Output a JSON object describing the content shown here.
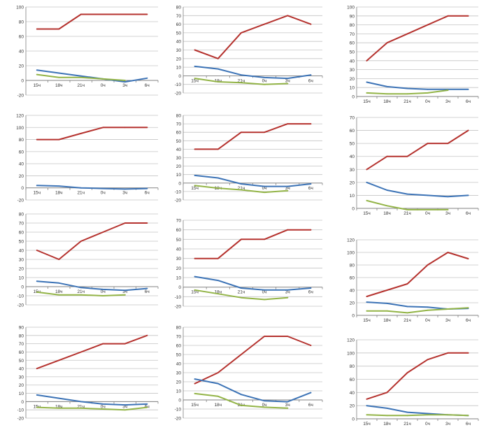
{
  "colors": {
    "red": "#B5322E",
    "blue": "#3C73B6",
    "green": "#93B447",
    "grid": "#C4C4C4",
    "axis": "#808080",
    "text": "#333333"
  },
  "chart_data": [
    {
      "type": "line",
      "title": "",
      "categories": [
        "15ч",
        "18ч",
        "21ч",
        "0ч",
        "3ч",
        "6ч"
      ],
      "ylim": [
        -20,
        100
      ],
      "yticks": [
        -20,
        0,
        20,
        40,
        60,
        80,
        100
      ],
      "grid": true,
      "series": [
        {
          "name": "red",
          "values": [
            70,
            70,
            90,
            90,
            90,
            90
          ]
        },
        {
          "name": "blue",
          "values": [
            14,
            10,
            6,
            2,
            -2,
            3
          ]
        },
        {
          "name": "green",
          "values": [
            8,
            4,
            4,
            2,
            0,
            null
          ]
        }
      ]
    },
    {
      "type": "line",
      "title": "",
      "categories": [
        "15ч",
        "18ч",
        "21ч",
        "0ч",
        "3ч",
        "6ч"
      ],
      "ylim": [
        -20,
        80
      ],
      "yticks": [
        -20,
        -10,
        0,
        10,
        20,
        30,
        40,
        50,
        60,
        70,
        80
      ],
      "grid": true,
      "series": [
        {
          "name": "red",
          "values": [
            30,
            20,
            50,
            60,
            70,
            60
          ]
        },
        {
          "name": "blue",
          "values": [
            11,
            8,
            1,
            -2,
            -3,
            1
          ]
        },
        {
          "name": "green",
          "values": [
            -3,
            -7,
            -8,
            -10,
            -9,
            null
          ]
        }
      ]
    },
    {
      "type": "line",
      "title": "",
      "categories": [
        "15ч",
        "18ч",
        "21ч",
        "0ч",
        "3ч",
        "6ч"
      ],
      "ylim": [
        0,
        100
      ],
      "yticks": [
        0,
        10,
        20,
        30,
        40,
        50,
        60,
        70,
        80,
        90,
        100
      ],
      "grid": true,
      "series": [
        {
          "name": "red",
          "values": [
            40,
            60,
            70,
            80,
            90,
            90
          ]
        },
        {
          "name": "blue",
          "values": [
            16,
            11,
            9,
            8,
            8,
            8
          ]
        },
        {
          "name": "green",
          "values": [
            4,
            3,
            3,
            4,
            7,
            null
          ]
        }
      ]
    },
    {
      "type": "line",
      "title": "",
      "categories": [
        "15ч",
        "18ч",
        "21ч",
        "0ч",
        "3ч",
        "6ч"
      ],
      "ylim": [
        -20,
        120
      ],
      "yticks": [
        -20,
        0,
        20,
        40,
        60,
        80,
        100,
        120
      ],
      "grid": true,
      "series": [
        {
          "name": "red",
          "values": [
            80,
            80,
            90,
            100,
            100,
            100
          ]
        },
        {
          "name": "blue",
          "values": [
            4,
            3,
            0,
            -1,
            -2,
            -1
          ]
        },
        {
          "name": "green",
          "values": [
            null,
            null,
            null,
            null,
            null,
            null
          ]
        }
      ]
    },
    {
      "type": "line",
      "title": "",
      "categories": [
        "15ч",
        "18ч",
        "21ч",
        "0ч",
        "3ч",
        "6ч"
      ],
      "ylim": [
        -20,
        80
      ],
      "yticks": [
        -20,
        -10,
        0,
        10,
        20,
        30,
        40,
        50,
        60,
        70,
        80
      ],
      "grid": true,
      "series": [
        {
          "name": "red",
          "values": [
            40,
            40,
            60,
            60,
            70,
            70
          ]
        },
        {
          "name": "blue",
          "values": [
            9,
            6,
            -1,
            -4,
            -4,
            -1
          ]
        },
        {
          "name": "green",
          "values": [
            -3,
            -6,
            -8,
            -11,
            -9,
            null
          ]
        }
      ]
    },
    {
      "type": "line",
      "title": "",
      "categories": [
        "15ч",
        "18ч",
        "21ч",
        "0ч",
        "3ч",
        "6ч"
      ],
      "ylim": [
        0,
        70
      ],
      "yticks": [
        0,
        10,
        20,
        30,
        40,
        50,
        60,
        70
      ],
      "grid": true,
      "series": [
        {
          "name": "red",
          "values": [
            30,
            40,
            40,
            50,
            50,
            60
          ]
        },
        {
          "name": "blue",
          "values": [
            20,
            14,
            11,
            10,
            9,
            10
          ]
        },
        {
          "name": "green",
          "values": [
            6,
            2,
            -1,
            -1,
            -1,
            null
          ]
        }
      ]
    },
    {
      "type": "line",
      "title": "",
      "categories": [
        "15ч",
        "18ч",
        "21ч",
        "0ч",
        "3ч",
        "6ч"
      ],
      "ylim": [
        -20,
        80
      ],
      "yticks": [
        -20,
        -10,
        0,
        10,
        20,
        30,
        40,
        50,
        60,
        70,
        80
      ],
      "grid": true,
      "series": [
        {
          "name": "red",
          "values": [
            40,
            30,
            50,
            60,
            70,
            70
          ]
        },
        {
          "name": "blue",
          "values": [
            6,
            4,
            -1,
            -3,
            -4,
            -2
          ]
        },
        {
          "name": "green",
          "values": [
            -6,
            -9,
            -9,
            -10,
            -9,
            null
          ]
        }
      ]
    },
    {
      "type": "line",
      "title": "",
      "categories": [
        "15ч",
        "18ч",
        "21ч",
        "0ч",
        "3ч",
        "6ч"
      ],
      "ylim": [
        -20,
        70
      ],
      "yticks": [
        -20,
        -10,
        0,
        10,
        20,
        30,
        40,
        50,
        60,
        70
      ],
      "grid": true,
      "series": [
        {
          "name": "red",
          "values": [
            30,
            30,
            50,
            50,
            60,
            60
          ]
        },
        {
          "name": "blue",
          "values": [
            11,
            7,
            -1,
            -3,
            -3,
            -1
          ]
        },
        {
          "name": "green",
          "values": [
            -3,
            -7,
            -11,
            -13,
            -11,
            null
          ]
        }
      ]
    },
    {
      "type": "line",
      "title": "",
      "categories": [
        "15ч",
        "18ч",
        "21ч",
        "0ч",
        "3ч",
        "6ч"
      ],
      "ylim": [
        0,
        120
      ],
      "yticks": [
        0,
        20,
        40,
        60,
        80,
        100,
        120
      ],
      "grid": true,
      "series": [
        {
          "name": "red",
          "values": [
            30,
            40,
            50,
            80,
            100,
            90
          ]
        },
        {
          "name": "blue",
          "values": [
            21,
            19,
            14,
            13,
            10,
            11
          ]
        },
        {
          "name": "green",
          "values": [
            7,
            7,
            4,
            8,
            10,
            12
          ]
        }
      ]
    },
    {
      "type": "line",
      "title": "",
      "categories": [
        "15ч",
        "18ч",
        "21ч",
        "0ч",
        "3ч",
        "6ч"
      ],
      "ylim": [
        -20,
        90
      ],
      "yticks": [
        -20,
        -10,
        0,
        10,
        20,
        30,
        40,
        50,
        60,
        70,
        80,
        90
      ],
      "grid": true,
      "series": [
        {
          "name": "red",
          "values": [
            40,
            50,
            60,
            70,
            70,
            80
          ]
        },
        {
          "name": "blue",
          "values": [
            8,
            4,
            0,
            -3,
            -4,
            -3
          ]
        },
        {
          "name": "green",
          "values": [
            -7,
            -8,
            -8,
            -9,
            -10,
            -7
          ]
        }
      ]
    },
    {
      "type": "line",
      "title": "",
      "categories": [
        "15ч",
        "18ч",
        "21ч",
        "0ч",
        "3ч",
        "6ч"
      ],
      "ylim": [
        -20,
        80
      ],
      "yticks": [
        -20,
        -10,
        0,
        10,
        20,
        30,
        40,
        50,
        60,
        70,
        80
      ],
      "grid": true,
      "series": [
        {
          "name": "red",
          "values": [
            18,
            30,
            50,
            70,
            70,
            60
          ]
        },
        {
          "name": "blue",
          "values": [
            23,
            18,
            6,
            -1,
            -2,
            8
          ]
        },
        {
          "name": "green",
          "values": [
            7,
            4,
            -6,
            -8,
            -9,
            null
          ]
        }
      ]
    },
    {
      "type": "line",
      "title": "",
      "categories": [
        "15ч",
        "18ч",
        "21ч",
        "0ч",
        "3ч",
        "6ч"
      ],
      "ylim": [
        0,
        120
      ],
      "yticks": [
        0,
        20,
        40,
        60,
        80,
        100,
        120
      ],
      "grid": true,
      "series": [
        {
          "name": "red",
          "values": [
            30,
            40,
            70,
            90,
            100,
            100
          ]
        },
        {
          "name": "blue",
          "values": [
            20,
            16,
            10,
            8,
            6,
            5
          ]
        },
        {
          "name": "green",
          "values": [
            6,
            5,
            5,
            6,
            6,
            5
          ]
        }
      ]
    }
  ]
}
